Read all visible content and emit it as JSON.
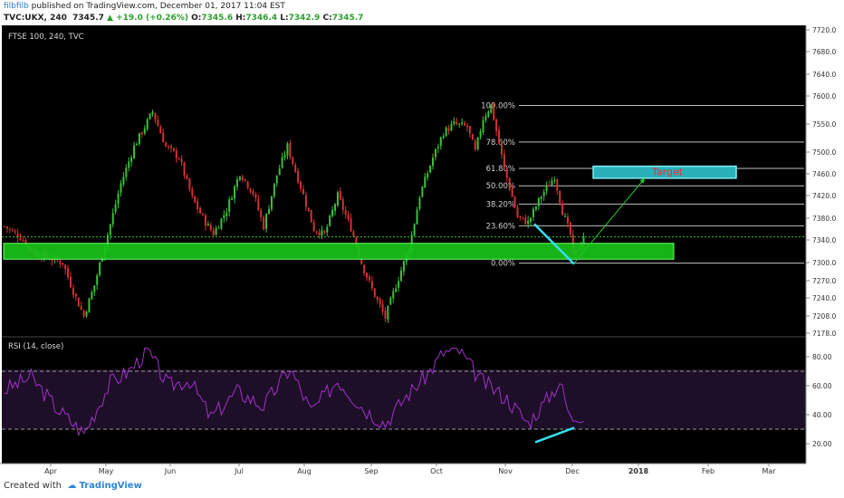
{
  "header": {
    "user": "filbfilb",
    "publish_text": " published on TradingView.com, December 01, 2017 11:04 EST",
    "symbol": "TVC:UKX, 240",
    "last": "7345.7",
    "change": "▲ +19.0 (+0.26%)",
    "o_label": "O:",
    "o": "7345.6",
    "h_label": "H:",
    "h": "7346.4",
    "l_label": "L:",
    "l": "7342.9",
    "c_label": "C:",
    "c": "7345.7"
  },
  "colors": {
    "up": "#3cbf3c",
    "down": "#d23232",
    "zone": "#19c319",
    "target": "#2ab0b8",
    "target_text": "#ff2a2a",
    "rsi": "#a030c8",
    "rsi_band": "#1e0f28",
    "cyan": "#38e0f0",
    "arrow": "#22cc22"
  },
  "chart_data": [
    {
      "type": "candlestick",
      "title": "FTSE 100, 240, TVC",
      "x_labels": [
        "Apr",
        "May",
        "Jun",
        "Jul",
        "Aug",
        "Sep",
        "Oct",
        "Nov",
        "Dec",
        "2018",
        "Feb",
        "Mar"
      ],
      "y_ticks": [
        7178.0,
        7208.0,
        7240.0,
        7270.0,
        7300.0,
        7340.0,
        7380.0,
        7420.0,
        7460.0,
        7500.0,
        7550.0,
        7600.0,
        7640.0,
        7680.0,
        7720.0
      ],
      "ylim": [
        7170,
        7725
      ],
      "last_value": 7345.7,
      "price_path": [
        [
          0,
          7365
        ],
        [
          6,
          7345
        ],
        [
          11,
          7318
        ],
        [
          16,
          7310
        ],
        [
          22,
          7300
        ],
        [
          27,
          7240
        ],
        [
          30,
          7208
        ],
        [
          34,
          7262
        ],
        [
          39,
          7350
        ],
        [
          44,
          7442
        ],
        [
          49,
          7510
        ],
        [
          53,
          7545
        ],
        [
          56,
          7572
        ],
        [
          61,
          7510
        ],
        [
          66,
          7490
        ],
        [
          71,
          7415
        ],
        [
          76,
          7372
        ],
        [
          79,
          7352
        ],
        [
          84,
          7395
        ],
        [
          89,
          7462
        ],
        [
          94,
          7425
        ],
        [
          98,
          7365
        ],
        [
          103,
          7458
        ],
        [
          107,
          7510
        ],
        [
          112,
          7436
        ],
        [
          117,
          7360
        ],
        [
          121,
          7350
        ],
        [
          126,
          7420
        ],
        [
          131,
          7362
        ],
        [
          135,
          7300
        ],
        [
          139,
          7255
        ],
        [
          144,
          7205
        ],
        [
          148,
          7262
        ],
        [
          153,
          7325
        ],
        [
          157,
          7420
        ],
        [
          162,
          7490
        ],
        [
          166,
          7535
        ],
        [
          170,
          7550
        ],
        [
          175,
          7545
        ],
        [
          178,
          7500
        ],
        [
          181,
          7560
        ],
        [
          184,
          7583
        ],
        [
          189,
          7470
        ],
        [
          194,
          7382
        ],
        [
          198,
          7372
        ],
        [
          203,
          7420
        ],
        [
          208,
          7455
        ],
        [
          211,
          7392
        ],
        [
          214,
          7350
        ],
        [
          215,
          7310
        ],
        [
          217,
          7325
        ],
        [
          219,
          7345.7
        ]
      ],
      "fib_levels": [
        {
          "label": "100.00%",
          "value": 7583
        },
        {
          "label": "78.60%",
          "value": 7518
        },
        {
          "label": "61.80%",
          "value": 7470
        },
        {
          "label": "50.00%",
          "value": 7438
        },
        {
          "label": "38.20%",
          "value": 7405
        },
        {
          "label": "23.60%",
          "value": 7366
        },
        {
          "label": "0.00%",
          "value": 7299
        }
      ],
      "support_zone": [
        7306,
        7334
      ],
      "target_zone": {
        "label": "Target",
        "low": 7452,
        "high": 7474
      }
    },
    {
      "type": "line",
      "title": "RSI (14, close)",
      "y_ticks": [
        80.0,
        60.0,
        40.0,
        20.0
      ],
      "ylim": [
        4,
        91
      ],
      "bands": [
        30,
        70
      ],
      "rsi_path": [
        [
          0,
          57
        ],
        [
          10,
          66
        ],
        [
          20,
          44
        ],
        [
          30,
          27
        ],
        [
          40,
          62
        ],
        [
          47,
          70
        ],
        [
          54,
          84
        ],
        [
          62,
          60
        ],
        [
          70,
          64
        ],
        [
          78,
          38
        ],
        [
          88,
          56
        ],
        [
          98,
          46
        ],
        [
          108,
          72
        ],
        [
          116,
          42
        ],
        [
          126,
          64
        ],
        [
          136,
          44
        ],
        [
          144,
          34
        ],
        [
          152,
          53
        ],
        [
          160,
          68
        ],
        [
          166,
          83
        ],
        [
          172,
          84
        ],
        [
          180,
          64
        ],
        [
          190,
          51
        ],
        [
          198,
          34
        ],
        [
          205,
          50
        ],
        [
          210,
          63
        ],
        [
          214,
          37
        ],
        [
          217,
          40
        ]
      ]
    }
  ],
  "footer": {
    "created": "Created with",
    "brand": "TradingView"
  }
}
